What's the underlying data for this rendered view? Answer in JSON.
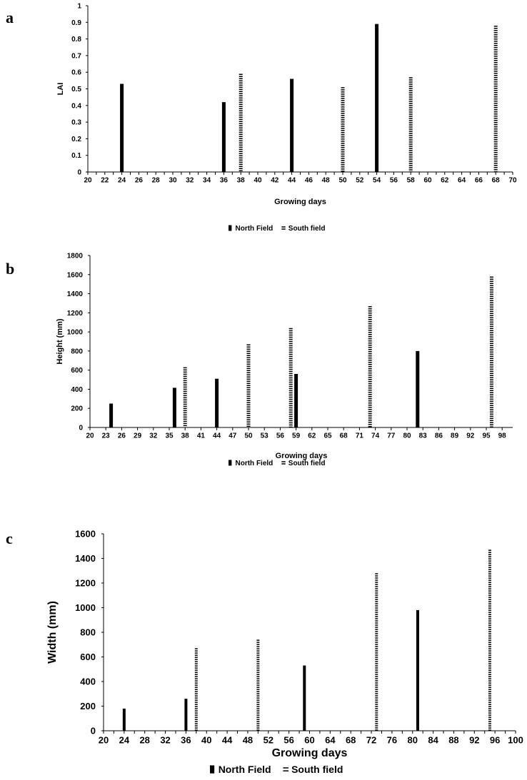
{
  "chart_data": [
    {
      "panel": "a",
      "type": "bar",
      "xlabel": "Growing days",
      "ylabel": "LAI",
      "ylim": [
        0,
        1
      ],
      "yticks": [
        "0",
        "0.1",
        "0.2",
        "0.3",
        "0.4",
        "0.5",
        "0.6",
        "0.7",
        "0.8",
        "0.9",
        "1"
      ],
      "xlim": [
        20,
        70
      ],
      "xticks": [
        "20",
        "22",
        "24",
        "26",
        "28",
        "30",
        "32",
        "34",
        "36",
        "38",
        "40",
        "42",
        "44",
        "46",
        "48",
        "50",
        "52",
        "54",
        "56",
        "58",
        "60",
        "62",
        "64",
        "66",
        "68",
        "70"
      ],
      "legend": "bottom",
      "series": [
        {
          "name": "North Field",
          "style": "solid",
          "x": [
            24,
            36,
            44,
            54
          ],
          "values": [
            0.53,
            0.42,
            0.56,
            0.89
          ]
        },
        {
          "name": "South field",
          "style": "dotted",
          "x": [
            38,
            50,
            58,
            68
          ],
          "values": [
            0.59,
            0.51,
            0.57,
            0.88
          ]
        }
      ]
    },
    {
      "panel": "b",
      "type": "bar",
      "xlabel": "Growing days",
      "ylabel": "Height (mm)",
      "ylim": [
        0,
        1800
      ],
      "yticks": [
        "0",
        "200",
        "400",
        "600",
        "800",
        "1000",
        "1200",
        "1400",
        "1600",
        "1800"
      ],
      "xlim": [
        20,
        100
      ],
      "xticks": [
        "20",
        "23",
        "26",
        "29",
        "32",
        "35",
        "38",
        "41",
        "44",
        "47",
        "50",
        "53",
        "56",
        "59",
        "62",
        "65",
        "68",
        "71",
        "74",
        "77",
        "80",
        "83",
        "86",
        "89",
        "92",
        "95",
        "98"
      ],
      "legend": "bottom",
      "series": [
        {
          "name": "North Field",
          "style": "solid",
          "x": [
            24,
            36,
            44,
            59,
            82
          ],
          "values": [
            250,
            415,
            510,
            560,
            800
          ]
        },
        {
          "name": "South field",
          "style": "dotted",
          "x": [
            38,
            50,
            58,
            73,
            96
          ],
          "values": [
            630,
            870,
            1040,
            1270,
            1580
          ]
        }
      ]
    },
    {
      "panel": "c",
      "type": "bar",
      "xlabel": "Growing days",
      "ylabel": "Width (mm)",
      "ylim": [
        0,
        1600
      ],
      "yticks": [
        "0",
        "200",
        "400",
        "600",
        "800",
        "1000",
        "1200",
        "1400",
        "1600"
      ],
      "xlim": [
        20,
        100
      ],
      "xticks": [
        "20",
        "24",
        "28",
        "32",
        "36",
        "40",
        "44",
        "48",
        "52",
        "56",
        "60",
        "64",
        "68",
        "72",
        "76",
        "80",
        "84",
        "88",
        "92",
        "96",
        "100"
      ],
      "legend": "bottom",
      "series": [
        {
          "name": "North Field",
          "style": "solid",
          "x": [
            24,
            36,
            59,
            81
          ],
          "values": [
            180,
            260,
            530,
            980
          ]
        },
        {
          "name": "South field",
          "style": "dotted",
          "x": [
            38,
            50,
            73,
            95
          ],
          "values": [
            670,
            740,
            1280,
            1470
          ]
        }
      ]
    }
  ]
}
